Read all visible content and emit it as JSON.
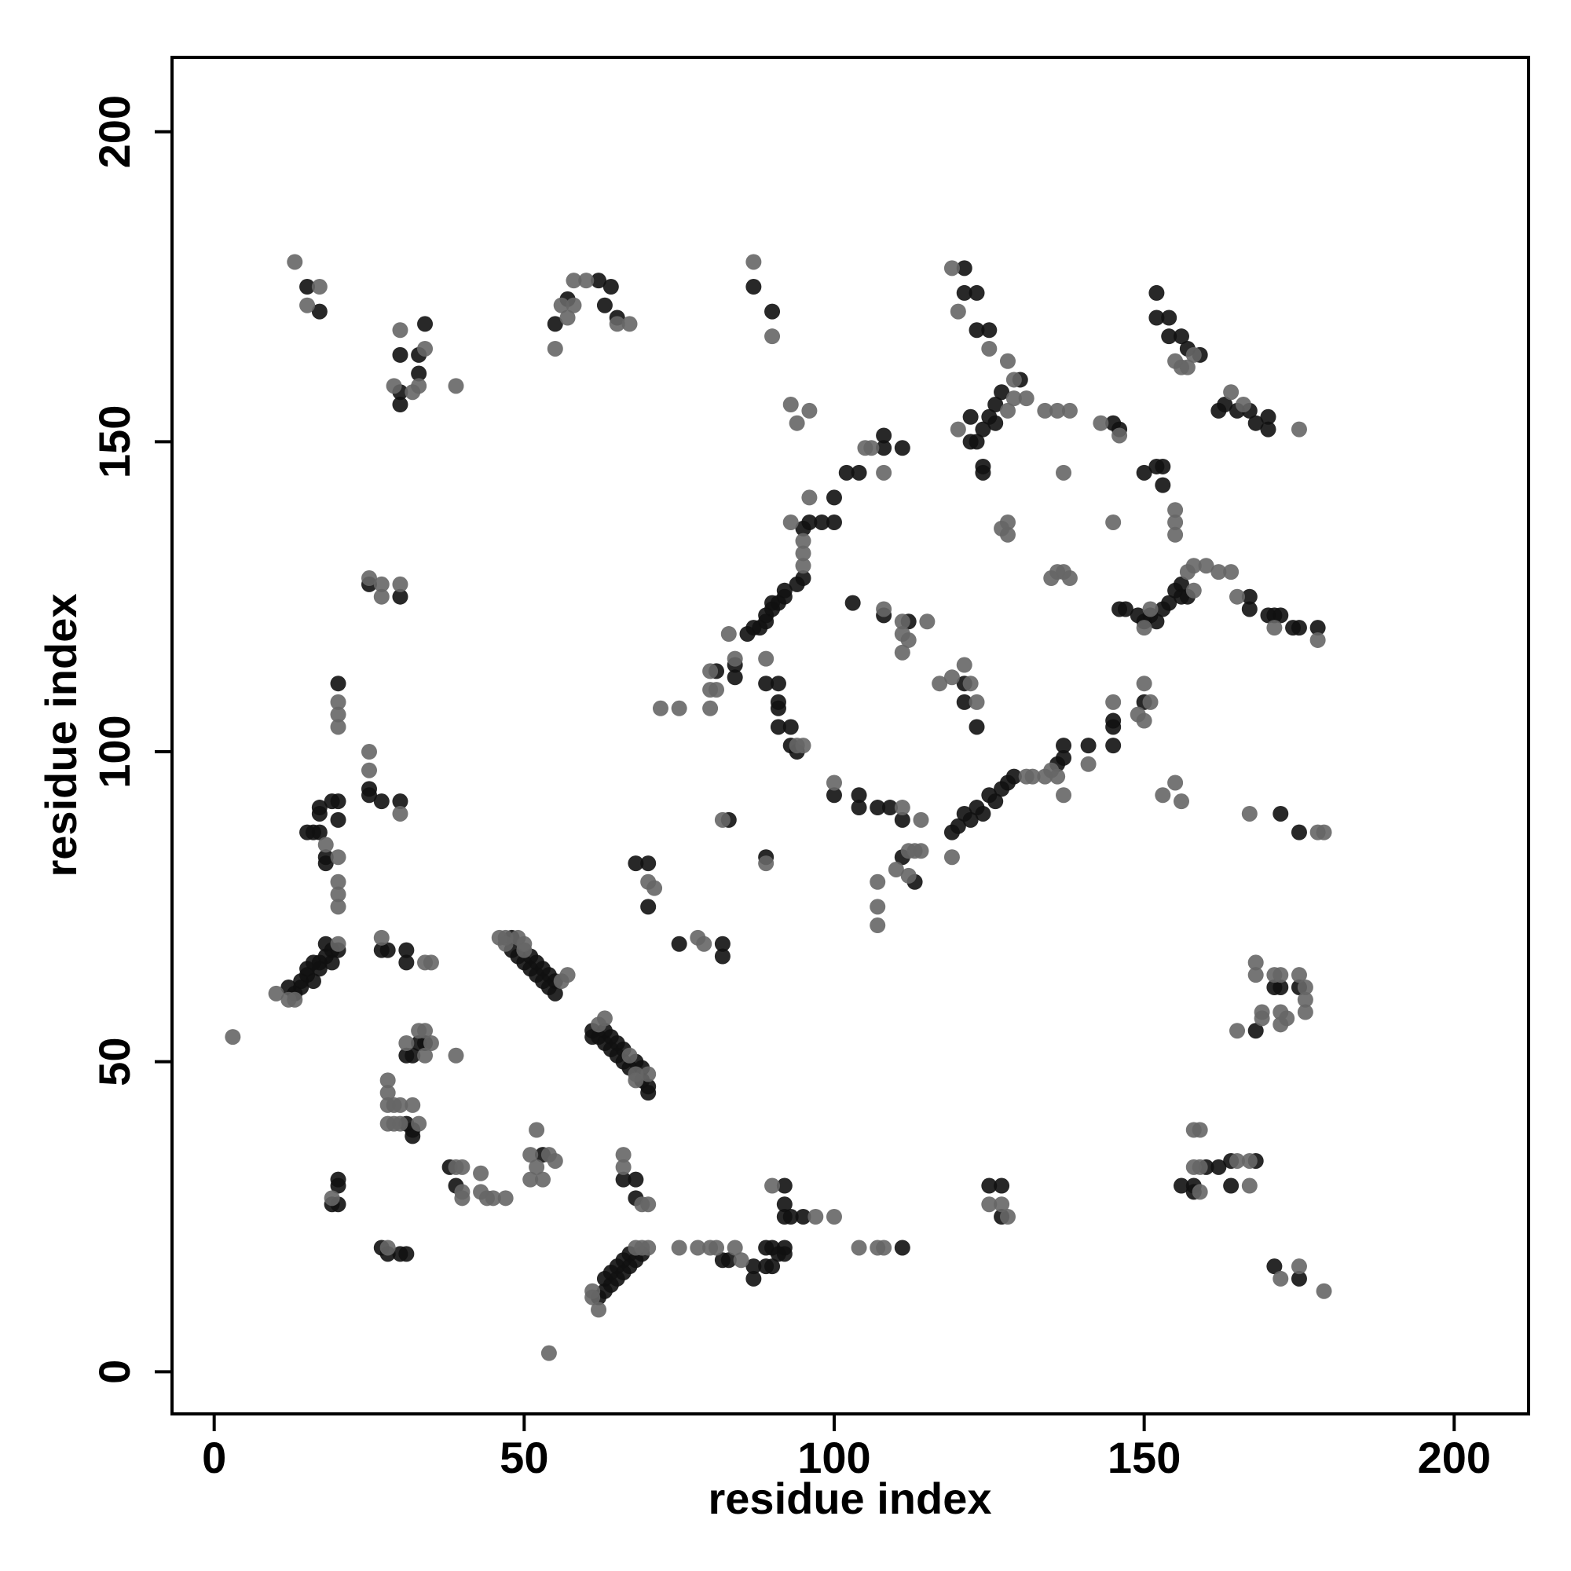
{
  "chart_data": {
    "type": "scatter",
    "x_label": "residue index",
    "y_label": "residue index",
    "xlim": [
      -6.8,
      212
    ],
    "ylim": [
      -6.8,
      212
    ],
    "xticks": [
      0,
      50,
      100,
      150,
      200
    ],
    "yticks": [
      0,
      50,
      100,
      150,
      200
    ],
    "series": [
      {
        "color": "#111111",
        "x": [
          15,
          17,
          30,
          34,
          33,
          33,
          30,
          30,
          55,
          57,
          62,
          63,
          64,
          65,
          87,
          90,
          121,
          121,
          123,
          123,
          125,
          152,
          152,
          154,
          154,
          156,
          157,
          159,
          130,
          127,
          126,
          126,
          124,
          123,
          122,
          122,
          124,
          124,
          125,
          163,
          165,
          167,
          168,
          170,
          170,
          162,
          145,
          146,
          150,
          152,
          153,
          153,
          100,
          102,
          104,
          108,
          108,
          111,
          100,
          98,
          96,
          95,
          95,
          94,
          92,
          92,
          90,
          90,
          89,
          88,
          87,
          86,
          89,
          91,
          103,
          108,
          112,
          84,
          81,
          84,
          89,
          91,
          91,
          91,
          91,
          93,
          93,
          94,
          121,
          121,
          123,
          150,
          145,
          145,
          145,
          141,
          146,
          147,
          149,
          150,
          151,
          152,
          153,
          154,
          155,
          156,
          167,
          167,
          170,
          171,
          172,
          174,
          175,
          178,
          156,
          157,
          100,
          104,
          104,
          107,
          109,
          111,
          119,
          120,
          121,
          123,
          125,
          126,
          127,
          128,
          129,
          136,
          137,
          137,
          124,
          122,
          111,
          113,
          83,
          89,
          172,
          175,
          20,
          20,
          19,
          20,
          17,
          17,
          16,
          15,
          17,
          18,
          18,
          25,
          25,
          27,
          30,
          30,
          25,
          12,
          13,
          14,
          14,
          15,
          15,
          16,
          17,
          17,
          18,
          18,
          19,
          19,
          20,
          16,
          27,
          28,
          31,
          31,
          48,
          51,
          52,
          53,
          54,
          55,
          54,
          53,
          52,
          51,
          50,
          49,
          48,
          55,
          33,
          34,
          31,
          32,
          31,
          32,
          32,
          61,
          62,
          63,
          64,
          64,
          65,
          65,
          66,
          66,
          67,
          68,
          69,
          69,
          70,
          70,
          61,
          63,
          38,
          39,
          53,
          20,
          20,
          20,
          19,
          27,
          28,
          30,
          31,
          66,
          68,
          68,
          62,
          63,
          63,
          64,
          64,
          65,
          65,
          66,
          66,
          67,
          67,
          68,
          69,
          82,
          83,
          87,
          87,
          89,
          90,
          89,
          90,
          91,
          92,
          92,
          92,
          92,
          92,
          93,
          95,
          111,
          75,
          82,
          82,
          68,
          70,
          70,
          125,
          127,
          127,
          156,
          158,
          160,
          158,
          162,
          164,
          168,
          164,
          172,
          171,
          175,
          168,
          171,
          175
        ],
        "values": [
          175,
          171,
          164,
          169,
          164,
          161,
          156,
          158,
          169,
          173,
          176,
          172,
          175,
          170,
          175,
          171,
          178,
          174,
          174,
          168,
          168,
          174,
          170,
          170,
          167,
          167,
          165,
          164,
          160,
          158,
          156,
          153,
          152,
          150,
          150,
          154,
          146,
          145,
          154,
          156,
          155,
          155,
          153,
          154,
          152,
          155,
          153,
          152,
          145,
          146,
          146,
          143,
          141,
          145,
          145,
          151,
          149,
          149,
          137,
          137,
          137,
          136,
          128,
          127,
          126,
          125,
          124,
          123,
          122,
          120,
          120,
          119,
          121,
          124,
          124,
          122,
          121,
          114,
          113,
          112,
          111,
          111,
          108,
          107,
          104,
          104,
          101,
          100,
          111,
          108,
          104,
          108,
          105,
          104,
          101,
          101,
          123,
          123,
          122,
          121,
          122,
          121,
          123,
          124,
          126,
          127,
          125,
          123,
          122,
          122,
          122,
          120,
          120,
          120,
          125,
          125,
          93,
          93,
          91,
          91,
          91,
          89,
          87,
          88,
          90,
          91,
          93,
          92,
          94,
          95,
          96,
          98,
          99,
          101,
          90,
          89,
          83,
          79,
          89,
          83,
          90,
          87,
          111,
          92,
          92,
          89,
          91,
          90,
          87,
          87,
          87,
          83,
          82,
          94,
          93,
          92,
          92,
          125,
          127,
          62,
          61,
          62,
          63,
          64,
          65,
          66,
          66,
          65,
          67,
          69,
          68,
          66,
          68,
          63,
          68,
          68,
          68,
          66,
          70,
          67,
          66,
          65,
          64,
          63,
          62,
          63,
          64,
          65,
          66,
          67,
          68,
          61,
          53,
          53,
          51,
          51,
          40,
          39,
          38,
          55,
          54,
          55,
          54,
          52,
          53,
          51,
          52,
          50,
          49,
          50,
          49,
          47,
          46,
          45,
          54,
          53,
          33,
          30,
          35,
          31,
          30,
          27,
          27,
          20,
          19,
          19,
          19,
          31,
          31,
          28,
          12,
          13,
          15,
          14,
          16,
          15,
          17,
          16,
          18,
          17,
          19,
          18,
          19,
          18,
          18,
          17,
          15,
          17,
          17,
          20,
          20,
          19,
          20,
          19,
          30,
          27,
          25,
          25,
          25,
          20,
          69,
          69,
          67,
          82,
          82,
          75,
          30,
          30,
          25,
          30,
          30,
          33,
          29,
          33,
          34,
          34,
          30,
          62,
          62,
          62,
          55,
          17,
          15
        ]
      },
      {
        "color": "#666666",
        "x": [
          13,
          15,
          17,
          30,
          34,
          29,
          32,
          33,
          39,
          55,
          56,
          57,
          58,
          60,
          65,
          67,
          58,
          87,
          90,
          93,
          94,
          96,
          119,
          120,
          125,
          155,
          156,
          158,
          157,
          128,
          129,
          128,
          120,
          129,
          131,
          164,
          166,
          175,
          143,
          146,
          134,
          136,
          138,
          137,
          155,
          155,
          155,
          145,
          128,
          128,
          127,
          135,
          136,
          137,
          138,
          96,
          105,
          106,
          108,
          93,
          95,
          95,
          95,
          108,
          111,
          115,
          111,
          112,
          111,
          83,
          84,
          80,
          80,
          81,
          80,
          72,
          75,
          89,
          95,
          94,
          117,
          119,
          121,
          122,
          123,
          150,
          151,
          149,
          150,
          145,
          141,
          157,
          158,
          160,
          162,
          164,
          165,
          171,
          178,
          158,
          150,
          151,
          100,
          111,
          114,
          131,
          132,
          134,
          135,
          136,
          137,
          119,
          112,
          113,
          114,
          110,
          112,
          107,
          107,
          107,
          82,
          89,
          153,
          155,
          156,
          167,
          178,
          179,
          20,
          20,
          20,
          18,
          20,
          20,
          20,
          20,
          25,
          25,
          30,
          25,
          27,
          27,
          30,
          10,
          12,
          20,
          13,
          27,
          34,
          35,
          46,
          47,
          49,
          50,
          50,
          56,
          57,
          47,
          3,
          33,
          34,
          35,
          31,
          34,
          39,
          28,
          28,
          28,
          29,
          30,
          32,
          28,
          29,
          30,
          33,
          62,
          63,
          67,
          68,
          70,
          68,
          39,
          40,
          40,
          40,
          43,
          43,
          44,
          45,
          47,
          52,
          51,
          52,
          51,
          53,
          54,
          55,
          19,
          28,
          66,
          66,
          69,
          70,
          61,
          61,
          62,
          68,
          70,
          69,
          75,
          78,
          80,
          81,
          84,
          85,
          90,
          97,
          100,
          104,
          107,
          108,
          54,
          78,
          79,
          70,
          71,
          125,
          127,
          128,
          158,
          159,
          158,
          159,
          159,
          165,
          167,
          167,
          168,
          168,
          171,
          172,
          175,
          176,
          176,
          176,
          172,
          173,
          172,
          169,
          169,
          165,
          172,
          175,
          179
        ],
        "values": [
          179,
          172,
          175,
          168,
          165,
          159,
          158,
          159,
          159,
          165,
          172,
          170,
          176,
          176,
          169,
          169,
          172,
          179,
          167,
          156,
          153,
          155,
          178,
          171,
          165,
          163,
          162,
          164,
          162,
          163,
          160,
          155,
          152,
          157,
          157,
          158,
          156,
          152,
          153,
          151,
          155,
          155,
          155,
          145,
          139,
          137,
          135,
          137,
          137,
          135,
          136,
          128,
          129,
          129,
          128,
          141,
          149,
          149,
          145,
          137,
          134,
          132,
          130,
          123,
          121,
          121,
          119,
          118,
          116,
          119,
          115,
          113,
          110,
          110,
          107,
          107,
          107,
          115,
          101,
          101,
          111,
          112,
          114,
          111,
          108,
          111,
          108,
          106,
          105,
          108,
          98,
          129,
          130,
          130,
          129,
          129,
          125,
          120,
          118,
          126,
          120,
          123,
          95,
          91,
          89,
          96,
          96,
          96,
          97,
          96,
          93,
          83,
          84,
          84,
          84,
          81,
          80,
          79,
          75,
          72,
          89,
          82,
          93,
          95,
          92,
          90,
          87,
          87,
          108,
          106,
          104,
          85,
          83,
          79,
          77,
          75,
          100,
          97,
          90,
          128,
          127,
          125,
          127,
          61,
          60,
          69,
          60,
          70,
          66,
          66,
          70,
          70,
          70,
          69,
          68,
          63,
          64,
          69,
          54,
          55,
          55,
          53,
          53,
          51,
          51,
          47,
          45,
          43,
          43,
          43,
          43,
          40,
          40,
          40,
          40,
          56,
          57,
          51,
          48,
          48,
          47,
          33,
          33,
          29,
          28,
          32,
          29,
          28,
          28,
          28,
          39,
          35,
          33,
          31,
          31,
          35,
          34,
          28,
          20,
          35,
          33,
          27,
          27,
          13,
          12,
          10,
          20,
          20,
          20,
          20,
          20,
          20,
          20,
          20,
          18,
          30,
          25,
          25,
          20,
          20,
          20,
          3,
          70,
          69,
          79,
          78,
          27,
          27,
          25,
          33,
          33,
          39,
          39,
          29,
          34,
          34,
          30,
          66,
          64,
          64,
          64,
          64,
          62,
          60,
          58,
          58,
          57,
          56,
          58,
          57,
          55,
          15,
          17,
          13
        ]
      }
    ]
  }
}
